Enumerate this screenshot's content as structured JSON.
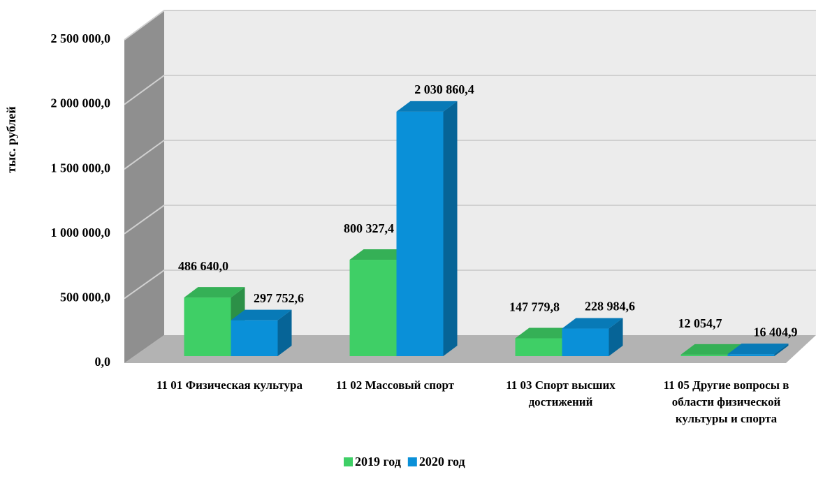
{
  "chart_data": {
    "type": "bar3d",
    "y_label": "тыс. рублей",
    "categories": [
      "11 01 Физическая культура",
      "11 02 Массовый спорт",
      "11 03 Спорт высших достижений",
      "11 05 Другие вопросы в области физической культуры и спорта"
    ],
    "series": [
      {
        "name": "2019 год",
        "color": "#3fcf66",
        "values": [
          486640.0,
          800327.4,
          147779.8,
          12054.7
        ],
        "value_labels": [
          "486 640,0",
          "800 327,4",
          "147 779,8",
          "12 054,7"
        ]
      },
      {
        "name": "2020 год",
        "color": "#0a90d8",
        "values": [
          297752.6,
          2030860.4,
          228984.6,
          16404.9
        ],
        "value_labels": [
          "297 752,6",
          "2 030 860,4",
          "228 984,6",
          "16 404,9"
        ]
      }
    ],
    "ylim": [
      0,
      2500000
    ],
    "yticks": [
      {
        "value": 0,
        "label": "0,0"
      },
      {
        "value": 500000,
        "label": "500 000,0"
      },
      {
        "value": 1000000,
        "label": "1 000 000,0"
      },
      {
        "value": 1500000,
        "label": "1 500 000,0"
      },
      {
        "value": 2000000,
        "label": "2 000 000,0"
      },
      {
        "value": 2500000,
        "label": "2 500 000,0"
      }
    ],
    "grid": true,
    "legend": "bottom"
  }
}
